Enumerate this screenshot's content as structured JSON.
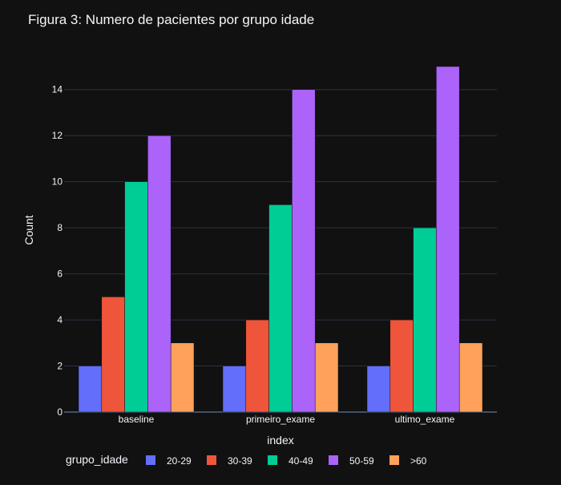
{
  "chart_data": {
    "type": "bar",
    "title": "Figura 3: Numero de pacientes por grupo idade",
    "xlabel": "index",
    "ylabel": "Count",
    "categories": [
      "baseline",
      "primeiro_exame",
      "ultimo_exame"
    ],
    "ylim": [
      0,
      15.8
    ],
    "yticks": [
      0,
      2,
      4,
      6,
      8,
      10,
      12,
      14
    ],
    "grid": true,
    "legend": {
      "title": "grupo_idade",
      "placement": "bottom"
    },
    "series": [
      {
        "name": "20-29",
        "values": [
          2,
          2,
          2
        ],
        "color": "#636efa"
      },
      {
        "name": "30-39",
        "values": [
          5,
          4,
          4
        ],
        "color": "#ef553b"
      },
      {
        "name": "40-49",
        "values": [
          10,
          9,
          8
        ],
        "color": "#00cc96"
      },
      {
        "name": "50-59",
        "values": [
          12,
          14,
          15
        ],
        "color": "#ab63fa"
      },
      {
        "name": ">60",
        "values": [
          3,
          3,
          3
        ],
        "color": "#ffa15a"
      }
    ]
  }
}
